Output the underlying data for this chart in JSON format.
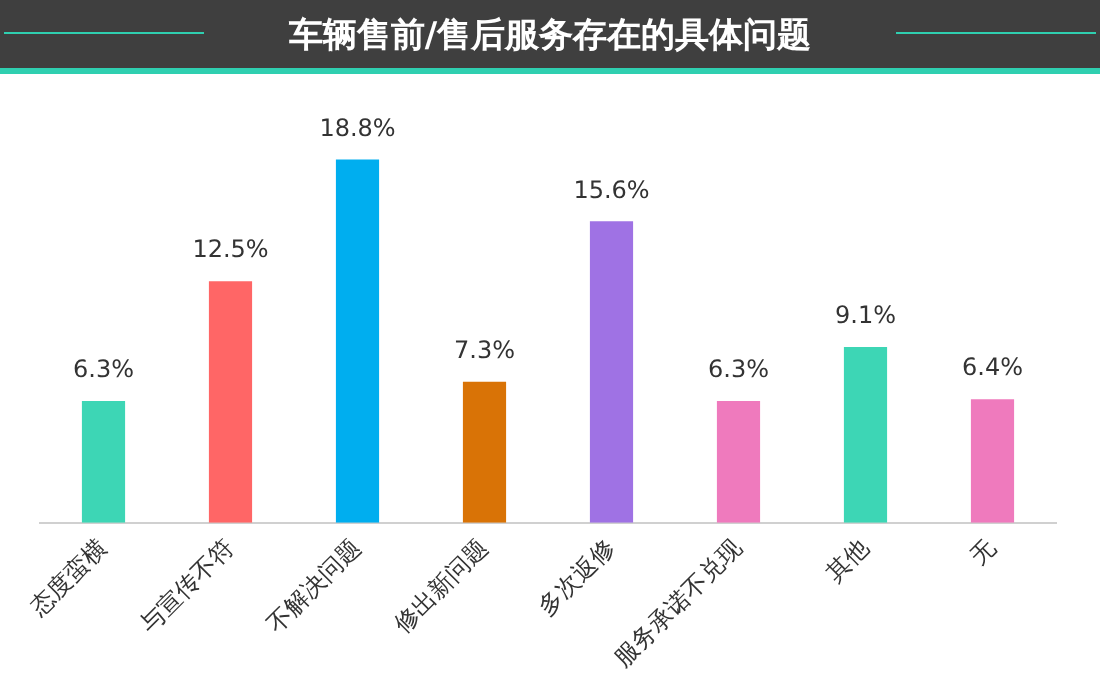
{
  "chart_data": {
    "type": "bar",
    "title": "车辆售前/售后服务存在的具体问题",
    "categories": [
      "态度蛮横",
      "与宣传不符",
      "不解决问题",
      "修出新问题",
      "多次返修",
      "服务承诺不兑现",
      "其他",
      "无"
    ],
    "values": [
      6.3,
      12.5,
      18.8,
      7.3,
      15.6,
      6.3,
      9.1,
      6.4
    ],
    "colors": [
      "#3dd6b5",
      "#ff6666",
      "#00aeef",
      "#d97306",
      "#9f72e4",
      "#ef7abd",
      "#3dd6b5",
      "#ef7abd"
    ],
    "value_labels": [
      "6.3%",
      "12.5%",
      "18.8%",
      "7.3%",
      "15.6%",
      "6.3%",
      "9.1%",
      "6.4%"
    ],
    "grid": false,
    "legend": false
  }
}
